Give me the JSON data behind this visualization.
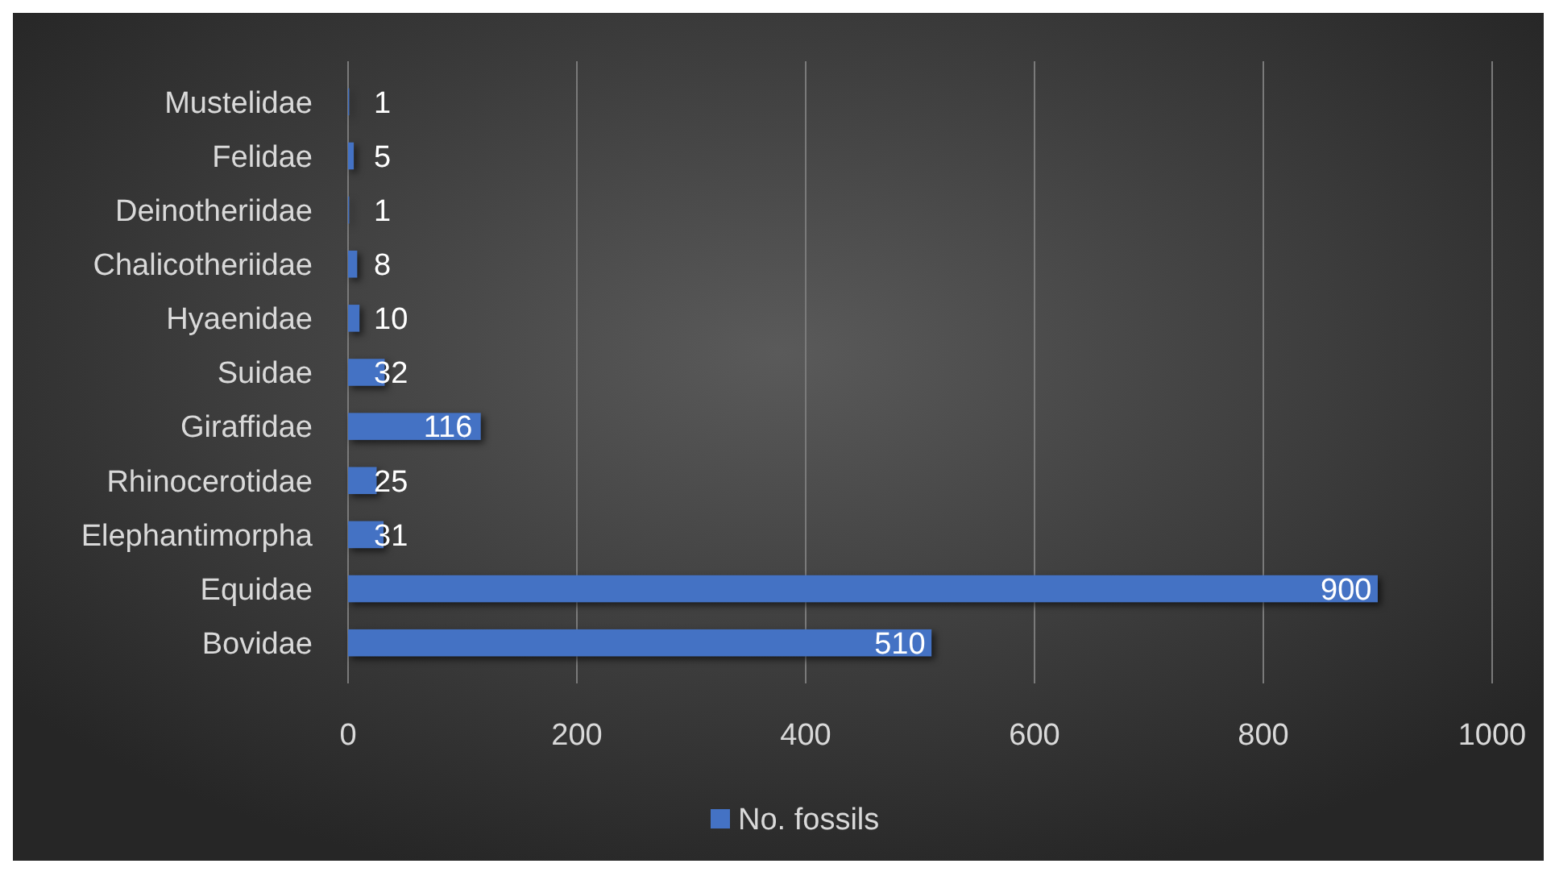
{
  "chart_data": {
    "type": "bar",
    "orientation": "horizontal",
    "categories": [
      "Mustelidae",
      "Felidae",
      "Deinotheriidae",
      "Chalicotheriidae",
      "Hyaenidae",
      "Suidae",
      "Giraffidae",
      "Rhinocerotidae",
      "Elephantimorpha",
      "Equidae",
      "Bovidae"
    ],
    "series": [
      {
        "name": "No. fossils",
        "color": "#4472c4",
        "values": [
          1,
          5,
          1,
          8,
          10,
          32,
          116,
          25,
          31,
          900,
          510
        ]
      }
    ],
    "xlim": [
      0,
      1000
    ],
    "xticks": [
      0,
      200,
      400,
      600,
      800,
      1000
    ],
    "grid": "x",
    "data_labels": true,
    "legend": "bottom"
  }
}
